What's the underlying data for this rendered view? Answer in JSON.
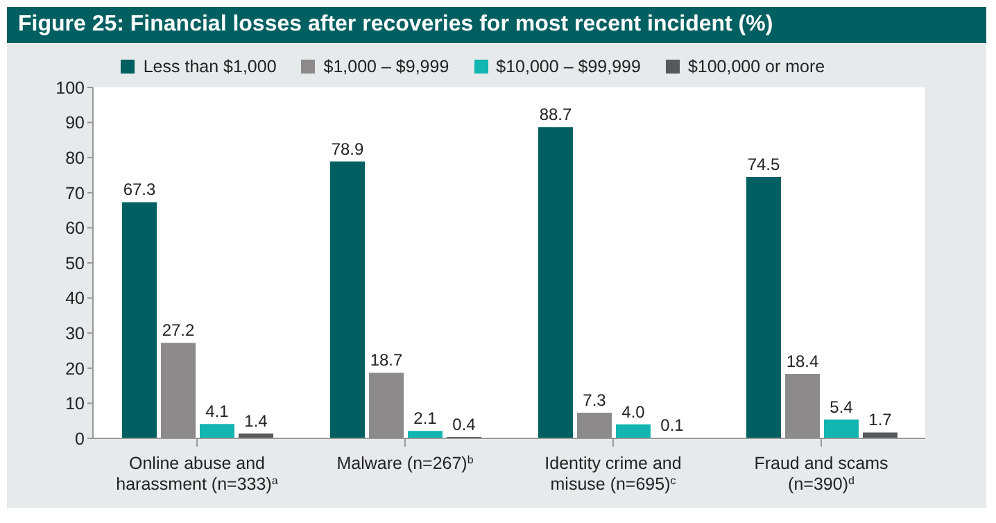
{
  "chart_data": {
    "type": "bar",
    "title": "Figure 25: Financial losses after recoveries for most recent incident (%)",
    "categories": [
      "Online abuse and harassment (n=333)$^{a}$",
      "Malware (n=267)$^{b}$",
      "Identity crime and misuse (n=695)$^{c}$",
      "Fraud and scams (n=390)$^{d}$"
    ],
    "series": [
      {
        "name": "Less than $1,000",
        "color": "#005f61",
        "values": [
          67.3,
          78.9,
          88.7,
          74.5
        ],
        "value_labels": [
          "67.3",
          "78.9",
          "88.7",
          "74.5"
        ]
      },
      {
        "name": "$1,000 – $9,999",
        "color": "#8c8a8a",
        "values": [
          27.2,
          18.7,
          7.3,
          18.4
        ],
        "value_labels": [
          "27.2",
          "18.7",
          "7.3",
          "18.4"
        ]
      },
      {
        "name": "$10,000 – $99,999",
        "color": "#13b5b1",
        "values": [
          4.1,
          2.1,
          4.0,
          5.4
        ],
        "value_labels": [
          "4.1",
          "2.1",
          "4.0",
          "5.4"
        ]
      },
      {
        "name": "$100,000 or more",
        "color": "#58595b",
        "values": [
          1.4,
          0.4,
          0.1,
          1.7
        ],
        "value_labels": [
          "1.4",
          "0.4",
          "0.1",
          "1.7"
        ]
      }
    ],
    "ylim": [
      0,
      100
    ],
    "yticks": [
      0,
      10,
      20,
      30,
      40,
      50,
      60,
      70,
      80,
      90,
      100
    ],
    "grid": false,
    "legend": "top"
  }
}
